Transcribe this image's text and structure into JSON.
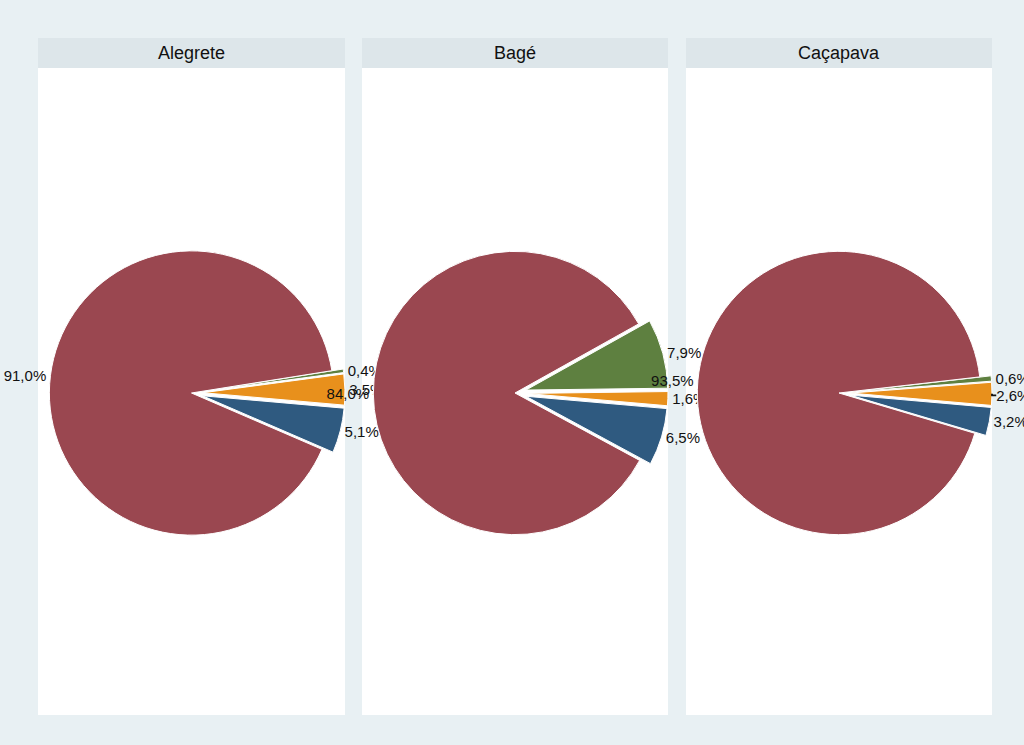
{
  "chart_data": [
    {
      "type": "pie",
      "title": "Alegrete",
      "values": [
        5.1,
        3.5,
        0.4,
        91.0
      ],
      "value_labels": [
        "5,1%",
        "3,5%",
        "0,4%",
        "91,0%"
      ],
      "colors": [
        "#2f5a80",
        "#e8901c",
        "#5e8040",
        "#9a4750"
      ],
      "data_labels": true
    },
    {
      "type": "pie",
      "title": "Bagé",
      "values": [
        6.5,
        1.6,
        7.9,
        84.0
      ],
      "value_labels": [
        "6,5%",
        "1,6%",
        "7,9%",
        "84,0%"
      ],
      "colors": [
        "#2f5a80",
        "#e8901c",
        "#5e8040",
        "#9a4750"
      ],
      "data_labels": true
    },
    {
      "type": "pie",
      "title": "Caçapava",
      "values": [
        3.2,
        2.6,
        0.6,
        93.5
      ],
      "value_labels": [
        "3,2%",
        "2,6%",
        "0,6%",
        "93,5%"
      ],
      "colors": [
        "#2f5a80",
        "#e8901c",
        "#5e8040",
        "#9a4750"
      ],
      "data_labels": true
    }
  ]
}
